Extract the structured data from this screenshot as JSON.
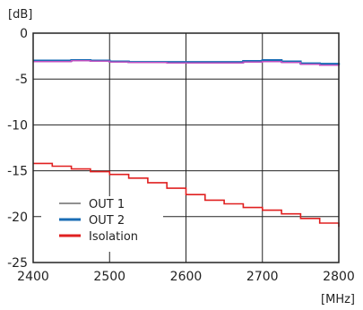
{
  "chart_data": {
    "type": "line",
    "xlabel": "[MHz]",
    "ylabel": "[dB]",
    "xlim": [
      2400,
      2800
    ],
    "ylim": [
      -25,
      0
    ],
    "x_ticks": [
      2400,
      2500,
      2600,
      2700,
      2800
    ],
    "y_ticks": [
      0,
      -5,
      -10,
      -15,
      -20,
      -25
    ],
    "grid": true,
    "legend": {
      "position": "bottom-left",
      "entries": [
        "OUT 1",
        "OUT 2",
        "Isolation"
      ]
    },
    "series": [
      {
        "name": "OUT 1",
        "color": "#c050c0",
        "x": [
          2400,
          2425,
          2450,
          2475,
          2500,
          2525,
          2550,
          2575,
          2600,
          2625,
          2650,
          2675,
          2700,
          2725,
          2750,
          2775,
          2800
        ],
        "y": [
          -3.1,
          -3.1,
          -3.0,
          -3.05,
          -3.15,
          -3.2,
          -3.2,
          -3.25,
          -3.25,
          -3.25,
          -3.25,
          -3.15,
          -3.1,
          -3.2,
          -3.4,
          -3.5,
          -3.55
        ]
      },
      {
        "name": "OUT 2",
        "color": "#1a6db5",
        "x": [
          2400,
          2425,
          2450,
          2475,
          2500,
          2525,
          2550,
          2575,
          2600,
          2625,
          2650,
          2675,
          2700,
          2725,
          2750,
          2775,
          2800
        ],
        "y": [
          -3.0,
          -3.0,
          -2.95,
          -3.0,
          -3.1,
          -3.15,
          -3.15,
          -3.15,
          -3.15,
          -3.15,
          -3.15,
          -3.05,
          -2.95,
          -3.1,
          -3.3,
          -3.35,
          -3.5
        ]
      },
      {
        "name": "Isolation",
        "color": "#e02020",
        "x": [
          2400,
          2425,
          2450,
          2475,
          2500,
          2525,
          2550,
          2575,
          2600,
          2625,
          2650,
          2675,
          2700,
          2725,
          2750,
          2775,
          2800
        ],
        "y": [
          -14.2,
          -14.5,
          -14.8,
          -15.1,
          -15.4,
          -15.8,
          -16.3,
          -16.9,
          -17.6,
          -18.2,
          -18.6,
          -19.0,
          -19.3,
          -19.7,
          -20.2,
          -20.7,
          -21.1
        ]
      }
    ]
  }
}
